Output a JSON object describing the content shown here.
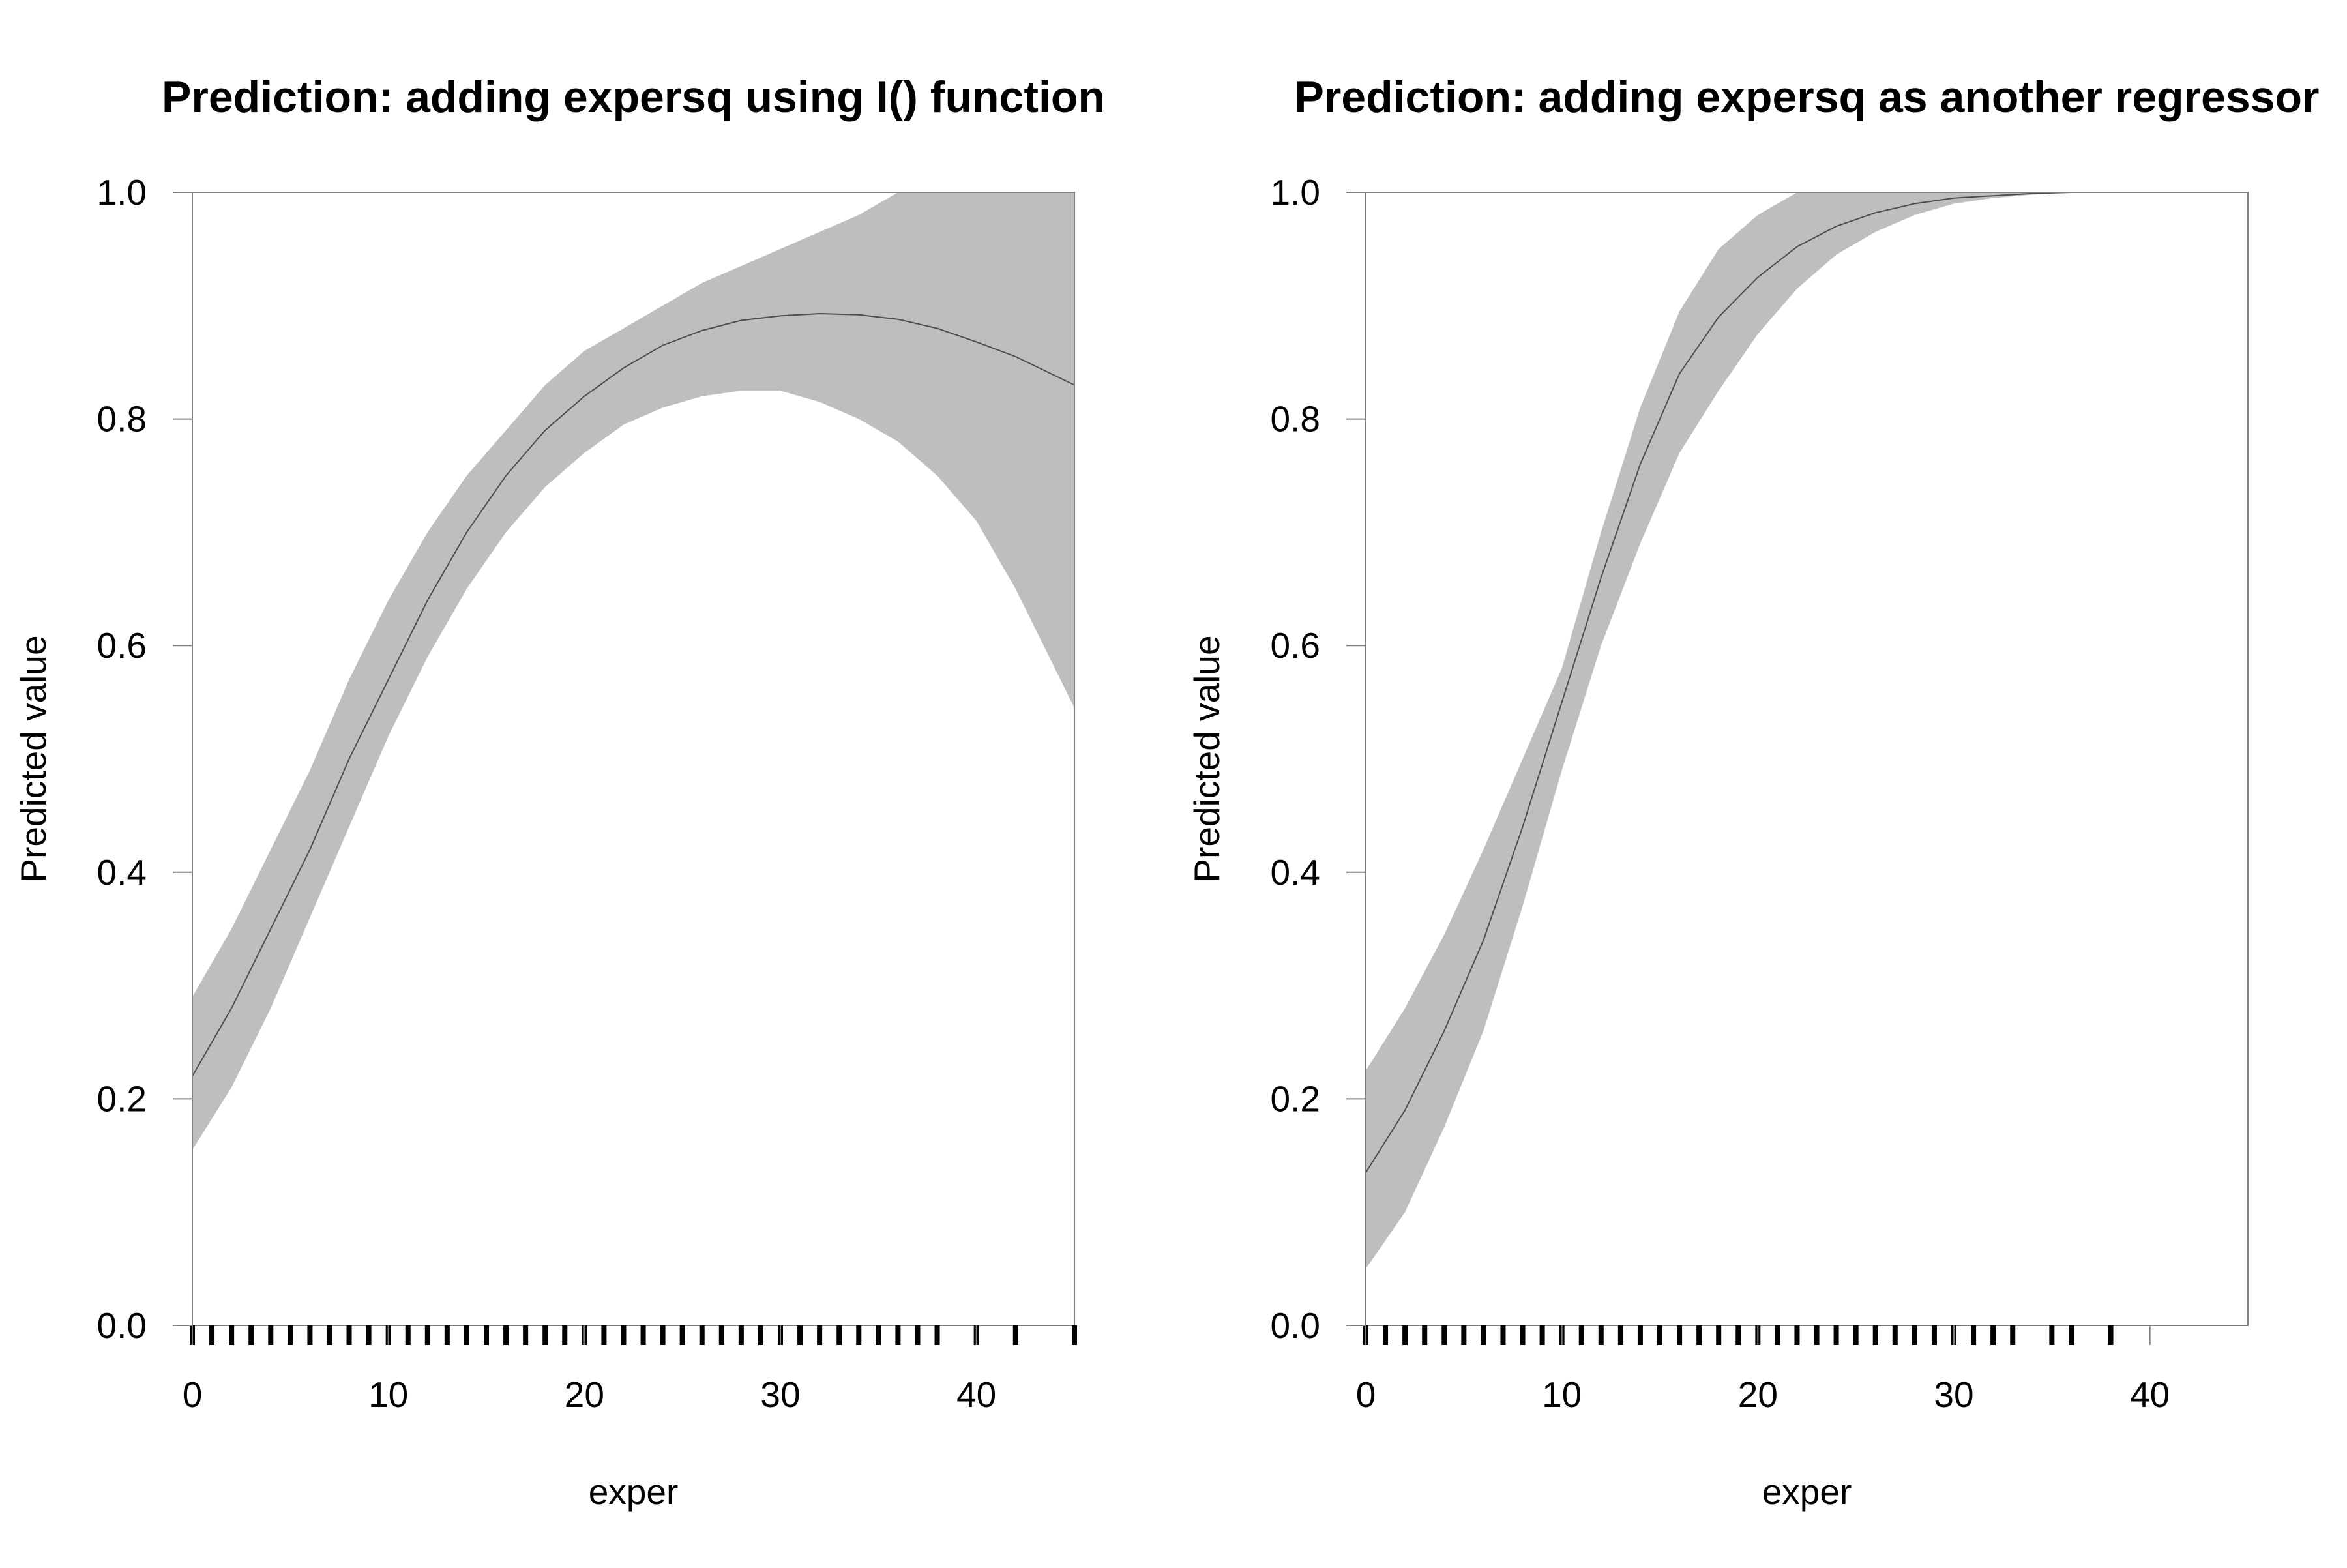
{
  "chart_data": [
    {
      "type": "area",
      "title": "Prediction: adding expersq using I() function",
      "xlabel": "exper",
      "ylabel": "Predicted value",
      "xlim": [
        0,
        45
      ],
      "ylim": [
        0,
        1
      ],
      "xticks": [
        0,
        10,
        20,
        30,
        40
      ],
      "yticks": [
        0.0,
        0.2,
        0.4,
        0.6,
        0.8,
        1.0
      ],
      "ytick_labels": [
        "0.0",
        "0.2",
        "0.4",
        "0.6",
        "0.8",
        "1.0"
      ],
      "grid": false,
      "legend": "none",
      "band_color": "#bebebe",
      "line_color": "#4d4d4d",
      "x": [
        0,
        2,
        4,
        6,
        8,
        10,
        12,
        14,
        16,
        18,
        20,
        22,
        24,
        26,
        28,
        30,
        32,
        34,
        36,
        38,
        40,
        42,
        45
      ],
      "series": [
        {
          "values": [
            0.22,
            0.28,
            0.35,
            0.42,
            0.5,
            0.57,
            0.64,
            0.7,
            0.75,
            0.79,
            0.82,
            0.845,
            0.865,
            0.878,
            0.887,
            0.891,
            0.893,
            0.892,
            0.888,
            0.88,
            0.868,
            0.855,
            0.83
          ]
        },
        {
          "values": [
            0.155,
            0.21,
            0.28,
            0.36,
            0.44,
            0.52,
            0.59,
            0.65,
            0.7,
            0.74,
            0.77,
            0.795,
            0.81,
            0.82,
            0.825,
            0.825,
            0.815,
            0.8,
            0.78,
            0.75,
            0.71,
            0.65,
            0.545
          ]
        },
        {
          "values": [
            0.29,
            0.35,
            0.42,
            0.49,
            0.57,
            0.64,
            0.7,
            0.75,
            0.79,
            0.83,
            0.86,
            0.88,
            0.9,
            0.92,
            0.935,
            0.95,
            0.965,
            0.98,
            1.0,
            1.0,
            1.0,
            1.0,
            1.0
          ]
        }
      ],
      "rug": [
        0,
        1,
        2,
        3,
        4,
        5,
        6,
        7,
        8,
        9,
        10,
        11,
        12,
        13,
        14,
        15,
        16,
        17,
        18,
        19,
        20,
        21,
        22,
        23,
        24,
        25,
        26,
        27,
        28,
        29,
        30,
        31,
        32,
        33,
        34,
        35,
        36,
        37,
        38,
        40,
        42,
        45
      ]
    },
    {
      "type": "area",
      "title": "Prediction: adding expersq as another regressor",
      "xlabel": "exper",
      "ylabel": "Predicted value",
      "xlim": [
        0,
        45
      ],
      "ylim": [
        0,
        1
      ],
      "xticks": [
        0,
        10,
        20,
        30,
        40
      ],
      "yticks": [
        0.0,
        0.2,
        0.4,
        0.6,
        0.8,
        1.0
      ],
      "ytick_labels": [
        "0.0",
        "0.2",
        "0.4",
        "0.6",
        "0.8",
        "1.0"
      ],
      "grid": false,
      "legend": "none",
      "band_color": "#bebebe",
      "line_color": "#4d4d4d",
      "x": [
        0,
        2,
        4,
        6,
        8,
        10,
        12,
        14,
        16,
        18,
        20,
        22,
        24,
        26,
        28,
        30,
        32,
        34,
        36,
        37
      ],
      "series": [
        {
          "values": [
            0.135,
            0.19,
            0.26,
            0.34,
            0.44,
            0.55,
            0.66,
            0.76,
            0.84,
            0.89,
            0.925,
            0.952,
            0.97,
            0.982,
            0.99,
            0.995,
            0.997,
            0.999,
            1.0,
            1.0
          ]
        },
        {
          "values": [
            0.05,
            0.1,
            0.175,
            0.26,
            0.37,
            0.49,
            0.6,
            0.69,
            0.77,
            0.825,
            0.875,
            0.915,
            0.945,
            0.965,
            0.98,
            0.99,
            0.995,
            0.998,
            1.0,
            1.0
          ]
        },
        {
          "values": [
            0.225,
            0.28,
            0.345,
            0.42,
            0.5,
            0.58,
            0.7,
            0.81,
            0.895,
            0.95,
            0.98,
            1.0,
            1.0,
            1.0,
            1.0,
            1.0,
            1.0,
            1.0,
            1.0,
            1.0
          ]
        }
      ],
      "rug": [
        0,
        1,
        2,
        3,
        4,
        5,
        6,
        7,
        8,
        9,
        10,
        11,
        12,
        13,
        14,
        15,
        16,
        17,
        18,
        19,
        20,
        21,
        22,
        23,
        24,
        25,
        26,
        27,
        28,
        29,
        30,
        31,
        32,
        33,
        35,
        36,
        38
      ]
    }
  ]
}
